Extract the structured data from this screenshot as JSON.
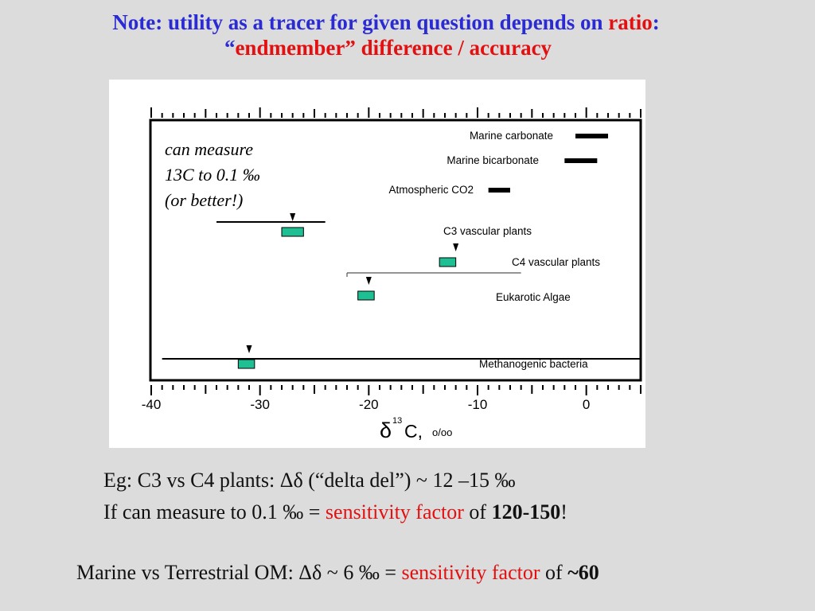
{
  "title": {
    "line1_prefix": "Note: utility as a tracer for given question depends on ",
    "line1_highlight": "ratio",
    "line1_suffix": ":",
    "line2_open": "“",
    "line2_highlight": "endmember” difference / accuracy"
  },
  "figure": {
    "note_lines": [
      "can measure",
      "13C to 0.1 ‰",
      "(or better!)"
    ],
    "x_unit": "o/oo",
    "x_symbol": "δ",
    "x_super": "13",
    "x_element": "C,"
  },
  "chart_data": {
    "type": "range",
    "xlim": [
      -40,
      5
    ],
    "x_ticks": [
      -40,
      -30,
      -20,
      -10,
      0
    ],
    "tick_labels": [
      "-40",
      "-30",
      "-20",
      "-10",
      "0"
    ],
    "xlabel": "δ13C, o/oo",
    "items": [
      {
        "label": "Marine carbonate",
        "bar": [
          -1,
          2
        ],
        "style": "black"
      },
      {
        "label": "Marine bicarbonate",
        "bar": [
          -2,
          1
        ],
        "style": "black"
      },
      {
        "label": "Atmospheric CO2",
        "bar": [
          -9,
          -7
        ],
        "style": "black"
      },
      {
        "label": "C3 vascular plants",
        "range": [
          -34,
          -24
        ],
        "box": [
          -28,
          -26
        ],
        "marker": -27,
        "style": "teal"
      },
      {
        "label": "C4 vascular plants",
        "range": [
          -22,
          -6
        ],
        "box": [
          -13.5,
          -12
        ],
        "marker": -12,
        "style": "teal"
      },
      {
        "label": "Eukarotic Algae",
        "box": [
          -21,
          -19.5
        ],
        "marker": -20,
        "style": "teal"
      },
      {
        "label": "Methanogenic bacteria",
        "range": [
          -39,
          5
        ],
        "box": [
          -32,
          -30.5
        ],
        "marker": -31,
        "style": "teal"
      }
    ],
    "colors": {
      "teal": "#1fbf94",
      "black": "#000000"
    }
  },
  "lines": {
    "l1_text": "Eg: C3 vs C4 plants:  Δδ (“delta del”) ~ 12 –15 ‰",
    "l2_prefix": "If can measure to 0.1 ‰  = ",
    "l2_red": "sensitivity factor",
    "l2_mid": " of ",
    "l2_bold": "120-150",
    "l2_suffix": "!",
    "l3_prefix": "Marine vs Terrestrial OM: Δδ  ~ 6 ‰ = ",
    "l3_red": "sensitivity factor",
    "l3_mid": " of ",
    "l3_bold": "~60"
  }
}
